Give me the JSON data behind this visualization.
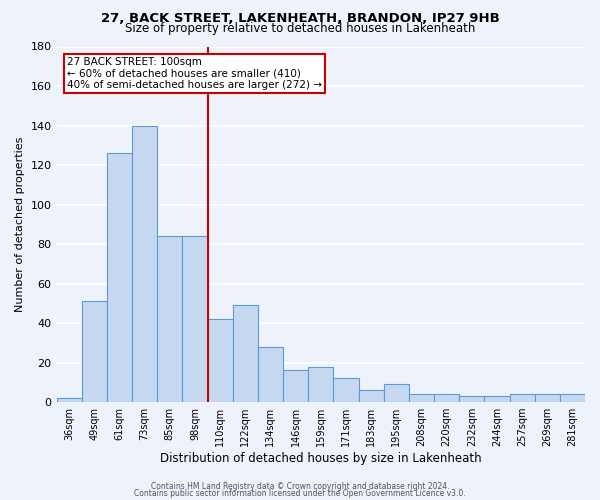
{
  "title1": "27, BACK STREET, LAKENHEATH, BRANDON, IP27 9HB",
  "title2": "Size of property relative to detached houses in Lakenheath",
  "xlabel": "Distribution of detached houses by size in Lakenheath",
  "ylabel": "Number of detached properties",
  "categories": [
    "36sqm",
    "49sqm",
    "61sqm",
    "73sqm",
    "85sqm",
    "98sqm",
    "110sqm",
    "122sqm",
    "134sqm",
    "146sqm",
    "159sqm",
    "171sqm",
    "183sqm",
    "195sqm",
    "208sqm",
    "220sqm",
    "232sqm",
    "244sqm",
    "257sqm",
    "269sqm",
    "281sqm"
  ],
  "values": [
    2,
    51,
    126,
    140,
    84,
    84,
    42,
    49,
    28,
    16,
    18,
    12,
    6,
    9,
    4,
    4,
    3,
    3,
    4,
    4,
    4
  ],
  "bar_color": "#c5d8f0",
  "bar_edge_color": "#5b9bd5",
  "reference_line_x": 5.5,
  "reference_line_color": "#cc0000",
  "annotation_title": "27 BACK STREET: 100sqm",
  "annotation_line1": "← 60% of detached houses are smaller (410)",
  "annotation_line2": "40% of semi-detached houses are larger (272) →",
  "annotation_box_color": "#cc0000",
  "ylim": [
    0,
    180
  ],
  "yticks": [
    0,
    20,
    40,
    60,
    80,
    100,
    120,
    140,
    160,
    180
  ],
  "footer1": "Contains HM Land Registry data © Crown copyright and database right 2024.",
  "footer2": "Contains public sector information licensed under the Open Government Licence v3.0.",
  "bg_color": "#eef2fa",
  "grid_color": "#ffffff"
}
